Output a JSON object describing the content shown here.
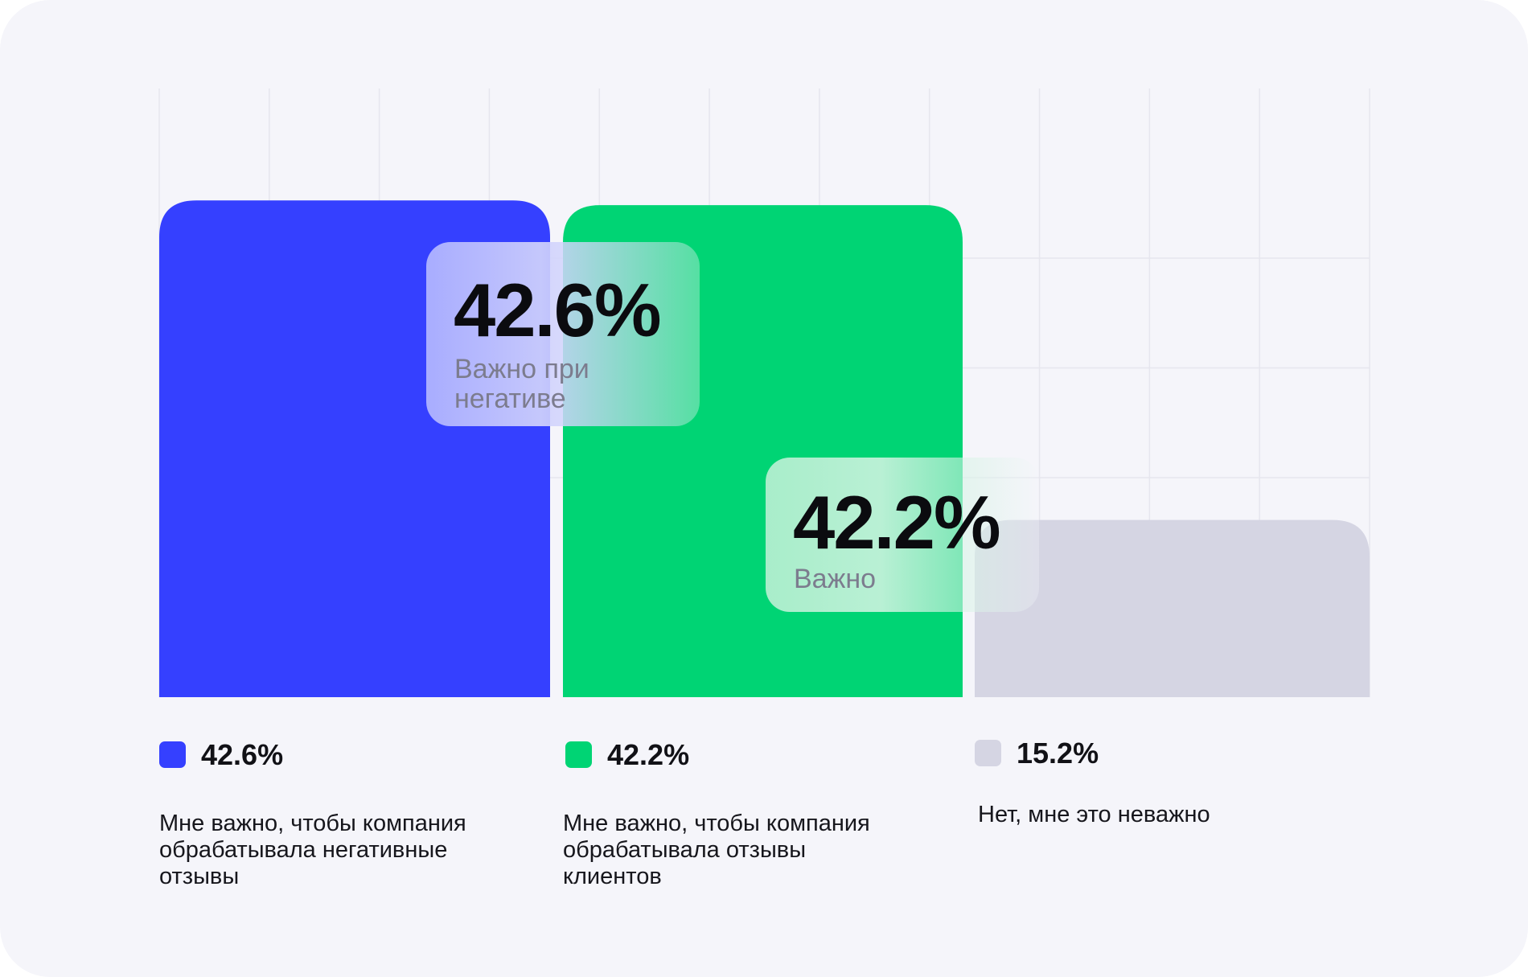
{
  "chart_data": {
    "type": "bar",
    "categories": [
      "Мне важно, чтобы компания обрабатывала негативные отзывы",
      "Мне важно, чтобы компания обрабатывала отзывы клиентов",
      "Нет, мне это неважно"
    ],
    "values": [
      42.6,
      42.2,
      15.2
    ],
    "value_labels": [
      "42.6%",
      "42.2%",
      "15.2%"
    ],
    "colors": [
      "#3540ff",
      "#00d474",
      "#d5d5e3"
    ],
    "grid": true,
    "legend": "bottom",
    "callouts": [
      {
        "value": "42.6%",
        "caption": "Важно при негативе",
        "color": "#3540ff"
      },
      {
        "value": "42.2%",
        "caption": "Важно",
        "color": "#00d474"
      }
    ]
  }
}
